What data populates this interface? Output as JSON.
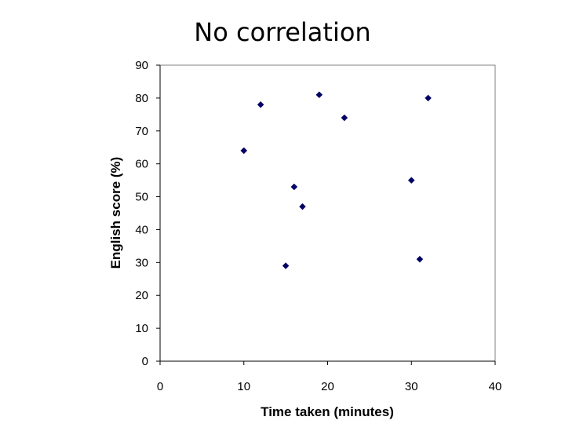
{
  "slide": {
    "title": "No correlation"
  },
  "chart_data": {
    "type": "scatter",
    "title": "No correlation",
    "xlabel": "Time taken (minutes)",
    "ylabel": "English score (%)",
    "xlim": [
      0,
      40
    ],
    "ylim": [
      0,
      90
    ],
    "x_ticks": [
      "0",
      "10",
      "20",
      "30",
      "40"
    ],
    "y_ticks": [
      "0",
      "10",
      "20",
      "30",
      "40",
      "50",
      "60",
      "70",
      "80",
      "90"
    ],
    "grid": false,
    "legend": false,
    "marker": "diamond",
    "marker_color": "#000066",
    "points": [
      {
        "x": 10,
        "y": 64
      },
      {
        "x": 12,
        "y": 78
      },
      {
        "x": 15,
        "y": 29
      },
      {
        "x": 16,
        "y": 53
      },
      {
        "x": 17,
        "y": 47
      },
      {
        "x": 19,
        "y": 81
      },
      {
        "x": 22,
        "y": 74
      },
      {
        "x": 30,
        "y": 55
      },
      {
        "x": 31,
        "y": 31
      },
      {
        "x": 32,
        "y": 80
      }
    ]
  }
}
